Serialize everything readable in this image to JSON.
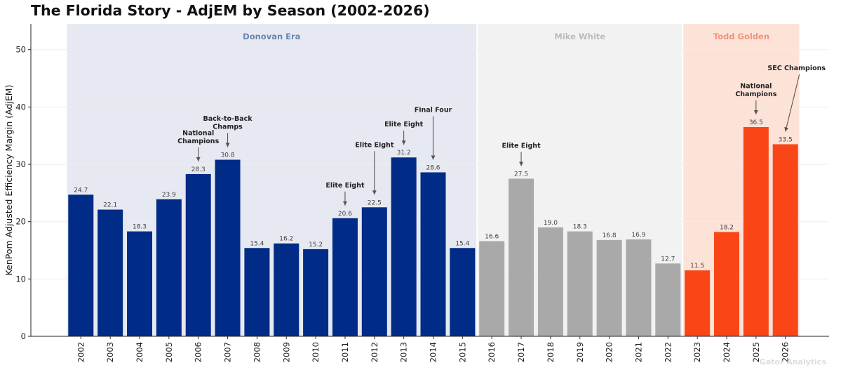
{
  "chart_data": {
    "type": "bar",
    "title": "The Florida Story - AdjEM by Season (2002-2026)",
    "ylabel": "KenPom Adjusted Efficiency Margin (AdjEM)",
    "xlabel": "",
    "ylim": [
      0,
      54.5
    ],
    "yticks": [
      "0",
      "10",
      "20",
      "30",
      "40",
      "50"
    ],
    "grid": "horizontal",
    "categories": [
      "2002",
      "2003",
      "2004",
      "2005",
      "2006",
      "2007",
      "2008",
      "2009",
      "2010",
      "2011",
      "2012",
      "2013",
      "2014",
      "2015",
      "2016",
      "2017",
      "2018",
      "2019",
      "2020",
      "2021",
      "2022",
      "2023",
      "2024",
      "2025",
      "2026"
    ],
    "values": [
      24.7,
      22.1,
      18.3,
      23.9,
      28.3,
      30.8,
      15.4,
      16.2,
      15.2,
      20.6,
      22.5,
      31.2,
      28.6,
      15.4,
      16.6,
      27.5,
      19.0,
      18.3,
      16.8,
      16.9,
      12.7,
      11.5,
      18.2,
      36.5,
      33.5
    ],
    "value_labels": [
      "24.7",
      "22.1",
      "18.3",
      "23.9",
      "28.3",
      "30.8",
      "15.4",
      "16.2",
      "15.2",
      "20.6",
      "22.5",
      "31.2",
      "28.6",
      "15.4",
      "16.6",
      "27.5",
      "19.0",
      "18.3",
      "16.8",
      "16.9",
      "12.7",
      "11.5",
      "18.2",
      "36.5",
      "33.5"
    ],
    "eras": [
      {
        "name": "Donovan Era",
        "start": 0,
        "end": 13,
        "bar_color": "#002b87",
        "band_color": "#e7e9f2",
        "label_color": "#6b83b4"
      },
      {
        "name": "Mike White",
        "start": 14,
        "end": 20,
        "bar_color": "#a9a9a9",
        "band_color": "#f2f2f2",
        "label_color": "#bbbbbb"
      },
      {
        "name": "Todd Golden",
        "start": 21,
        "end": 24,
        "bar_color": "#fa4616",
        "band_color": "#fde2d8",
        "label_color": "#f0947a"
      }
    ],
    "annotations": [
      {
        "index": 4,
        "lines": [
          "National",
          "Champions"
        ]
      },
      {
        "index": 5,
        "lines": [
          "Back-to-Back",
          "Champs"
        ]
      },
      {
        "index": 9,
        "lines": [
          "Elite Eight"
        ]
      },
      {
        "index": 10,
        "lines": [
          "Elite Eight"
        ]
      },
      {
        "index": 11,
        "lines": [
          "Elite Eight"
        ]
      },
      {
        "index": 12,
        "lines": [
          "Final Four"
        ]
      },
      {
        "index": 15,
        "lines": [
          "Elite Eight"
        ]
      },
      {
        "index": 23,
        "lines": [
          "National",
          "Champions"
        ]
      },
      {
        "index": 24,
        "lines": [
          "SEC Champions"
        ]
      }
    ],
    "watermark": "Gator Analytics"
  }
}
